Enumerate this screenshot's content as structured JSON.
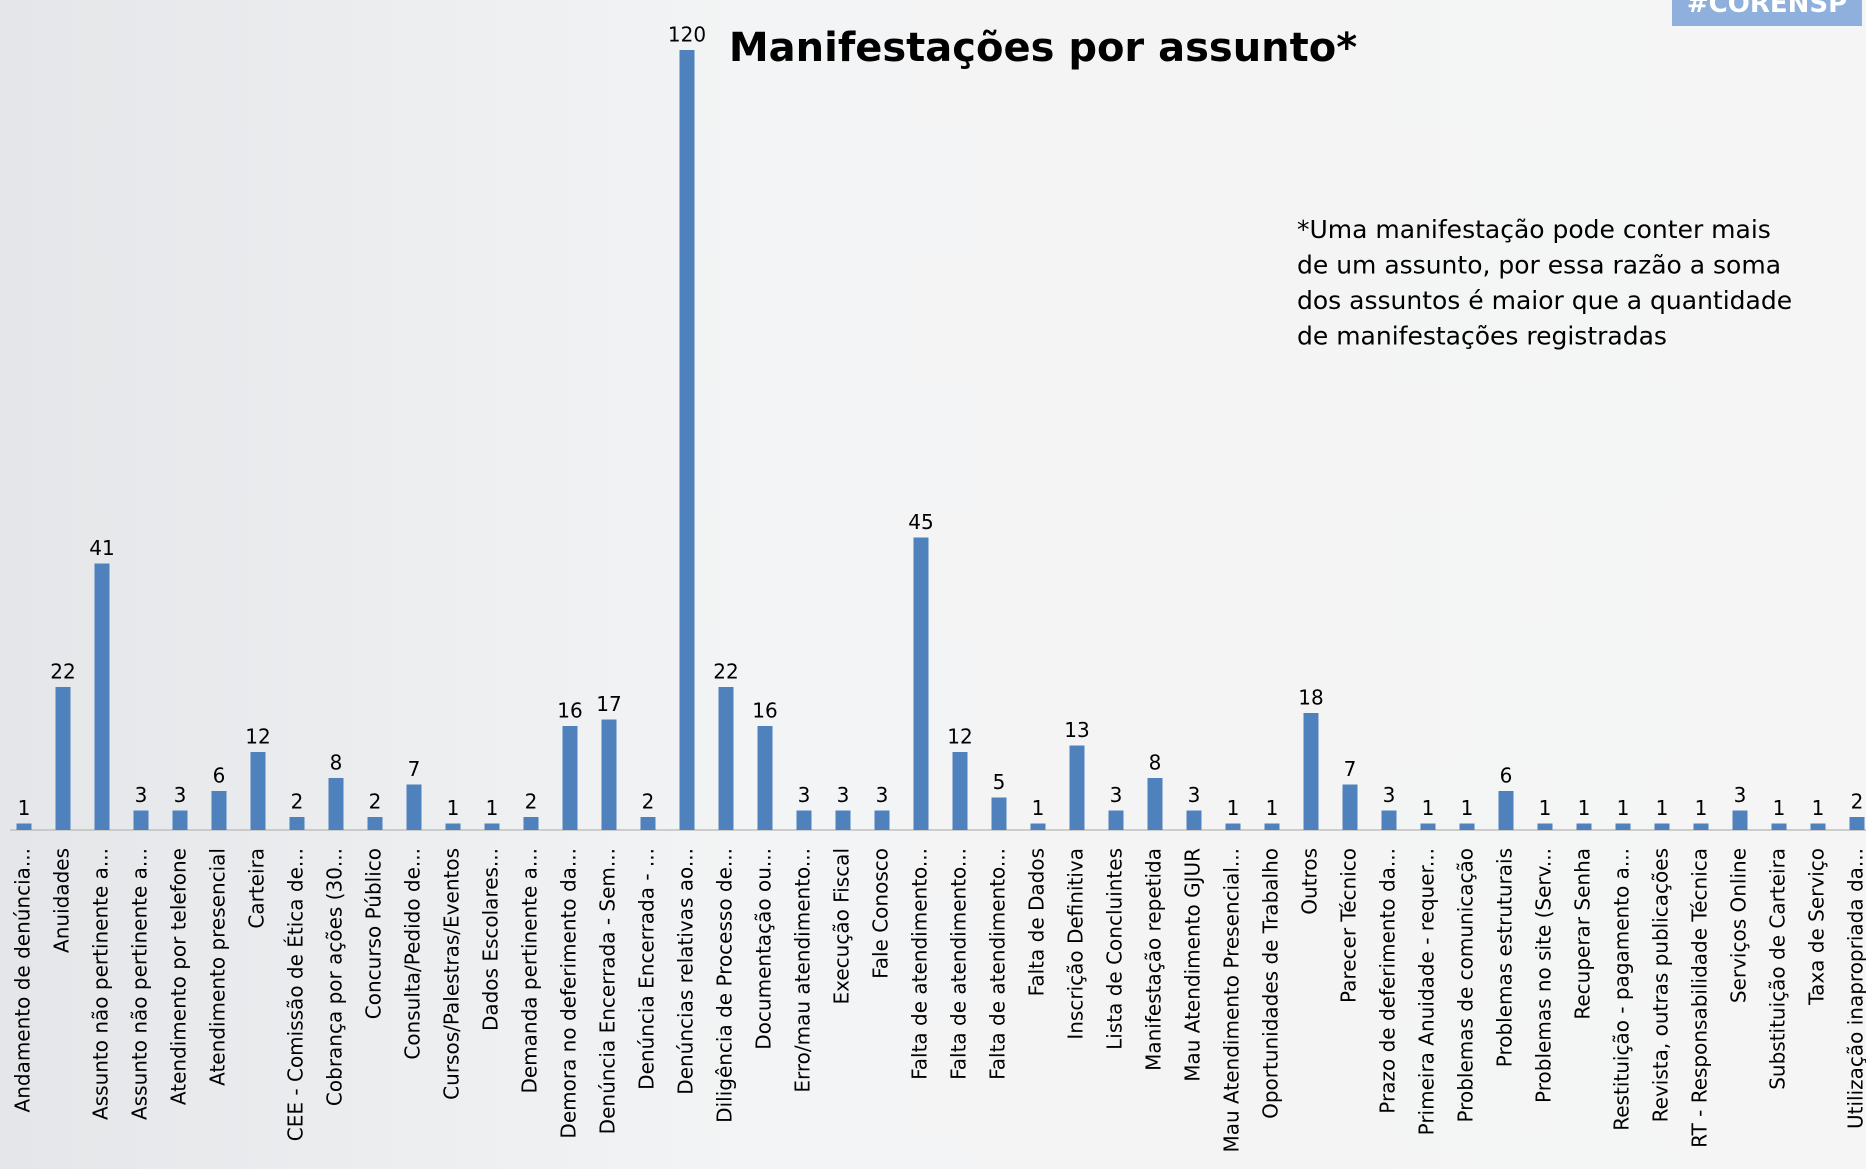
{
  "chart_data": {
    "type": "bar",
    "title": "Manifestações por assunto*",
    "note": [
      "*Uma manifestação pode conter mais",
      "de um assunto, por essa razão a soma",
      "dos assuntos é maior que a quantidade",
      "de manifestações registradas"
    ],
    "logo": "#CORENSP",
    "categories": [
      "Andamento de denúncia...",
      "Anuidades",
      "Assunto não pertinente a...",
      "Assunto não pertinente a...",
      "Atendimento por telefone",
      "Atendimento presencial",
      "Carteira",
      "CEE - Comissão de Ética de...",
      "Cobrança por ações (30...",
      "Concurso Público",
      "Consulta/Pedido de...",
      "Cursos/Palestras/Eventos",
      "Dados Escolares...",
      "Demanda pertinente a...",
      "Demora no deferimento da...",
      "Denúncia Encerrada - Sem...",
      "Denúncia Encerrada - ...",
      "Denúncias relativas ao...",
      "Diligência de Processo de...",
      "Documentação ou...",
      "Erro/mau atendimento...",
      "Execução Fiscal",
      "Fale Conosco",
      "Falta de atendimento...",
      "Falta de atendimento...",
      "Falta de atendimento...",
      "Falta de Dados",
      "Inscrição Definitiva",
      "Lista de Concluintes",
      "Manifestação repetida",
      "Mau Atendimento GJUR",
      "Mau Atendimento Presencial...",
      "Oportunidades de Trabalho",
      "Outros",
      "Parecer Técnico",
      "Prazo de deferimento da...",
      "Primeira Anuidade - requer...",
      "Problemas de comunicação",
      "Problemas estruturais",
      "Problemas no site (Serv...",
      "Recuperar Senha",
      "Restituição - pagamento a...",
      "Revista, outras publicações",
      "RT - Responsabilidade Técnica",
      "Serviços Online",
      "Substituição de Carteira",
      "Taxa de Serviço",
      "Utilização inapropriada da..."
    ],
    "values": [
      1,
      22,
      41,
      3,
      3,
      6,
      12,
      2,
      8,
      2,
      7,
      1,
      1,
      2,
      16,
      17,
      2,
      120,
      22,
      16,
      3,
      3,
      3,
      45,
      12,
      5,
      1,
      13,
      3,
      8,
      3,
      1,
      1,
      18,
      7,
      3,
      1,
      1,
      6,
      1,
      1,
      1,
      1,
      1,
      3,
      1,
      1,
      2
    ],
    "color": "#4f81bd",
    "ylim": [
      0,
      120
    ]
  }
}
